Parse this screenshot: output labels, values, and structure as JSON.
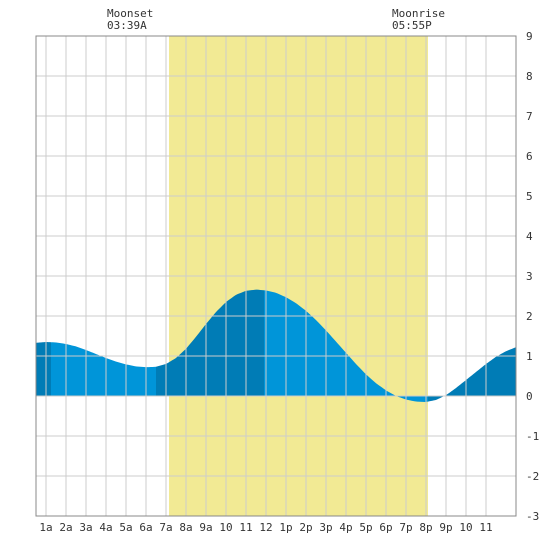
{
  "moon": {
    "moonset_label": "Moonset",
    "moonset_time": "03:39A",
    "moonrise_label": "Moonrise",
    "moonrise_time": "05:55P"
  },
  "chart_data": {
    "type": "area",
    "title": "",
    "xlabel": "",
    "ylabel": "",
    "x_unit": "hour of day",
    "xlim": [
      -0.5,
      23.5
    ],
    "ylim": [
      -3,
      9
    ],
    "x_tick_labels": [
      "1a",
      "2a",
      "3a",
      "4a",
      "5a",
      "6a",
      "7a",
      "8a",
      "9a",
      "10",
      "11",
      "12",
      "1p",
      "2p",
      "3p",
      "4p",
      "5p",
      "6p",
      "7p",
      "8p",
      "9p",
      "10",
      "11"
    ],
    "y_ticks": [
      -3,
      -2,
      -1,
      0,
      1,
      2,
      3,
      4,
      5,
      6,
      7,
      8,
      9
    ],
    "grid": true,
    "daylight": {
      "start": 6.15,
      "end": 19.1
    },
    "tide_extremes": [
      {
        "type": "high",
        "time": 0.25,
        "height": 1.35
      },
      {
        "type": "low",
        "time": 5.5,
        "height": 0.72
      },
      {
        "type": "high",
        "time": 10.9,
        "height": 2.65
      },
      {
        "type": "low",
        "time": 19.1,
        "height": -0.15
      },
      {
        "type": "high",
        "time": 23.5,
        "height": 1.22
      }
    ],
    "series": [
      {
        "x": [
          -0.5,
          0,
          0.5,
          1,
          1.5,
          2,
          2.5,
          3,
          3.5,
          4,
          4.5,
          5,
          5.5,
          6,
          6.5,
          7,
          7.5,
          8,
          8.5,
          9,
          9.5,
          10,
          10.5,
          11,
          11.5,
          12,
          12.5,
          13,
          13.5,
          14,
          14.5,
          15,
          15.5,
          16,
          16.5,
          17,
          17.5,
          18,
          18.5,
          19,
          19.5,
          20,
          20.5,
          21,
          21.5,
          22,
          22.5,
          23,
          23.5
        ],
        "values": [
          1.33,
          1.35,
          1.34,
          1.3,
          1.24,
          1.15,
          1.05,
          0.95,
          0.86,
          0.79,
          0.74,
          0.72,
          0.73,
          0.8,
          0.95,
          1.18,
          1.48,
          1.8,
          2.1,
          2.35,
          2.53,
          2.63,
          2.66,
          2.64,
          2.58,
          2.47,
          2.32,
          2.13,
          1.9,
          1.64,
          1.36,
          1.08,
          0.8,
          0.54,
          0.32,
          0.14,
          0.0,
          -0.09,
          -0.14,
          -0.15,
          -0.1,
          0.02,
          0.2,
          0.4,
          0.6,
          0.8,
          0.98,
          1.12,
          1.22
        ]
      }
    ],
    "colors": {
      "daylight": "#f2ea94",
      "tide_fill": "#0095d9",
      "tide_fill_dark": "#007cb6",
      "grid": "#cccccc",
      "border": "#888888",
      "text": "#333333"
    }
  }
}
